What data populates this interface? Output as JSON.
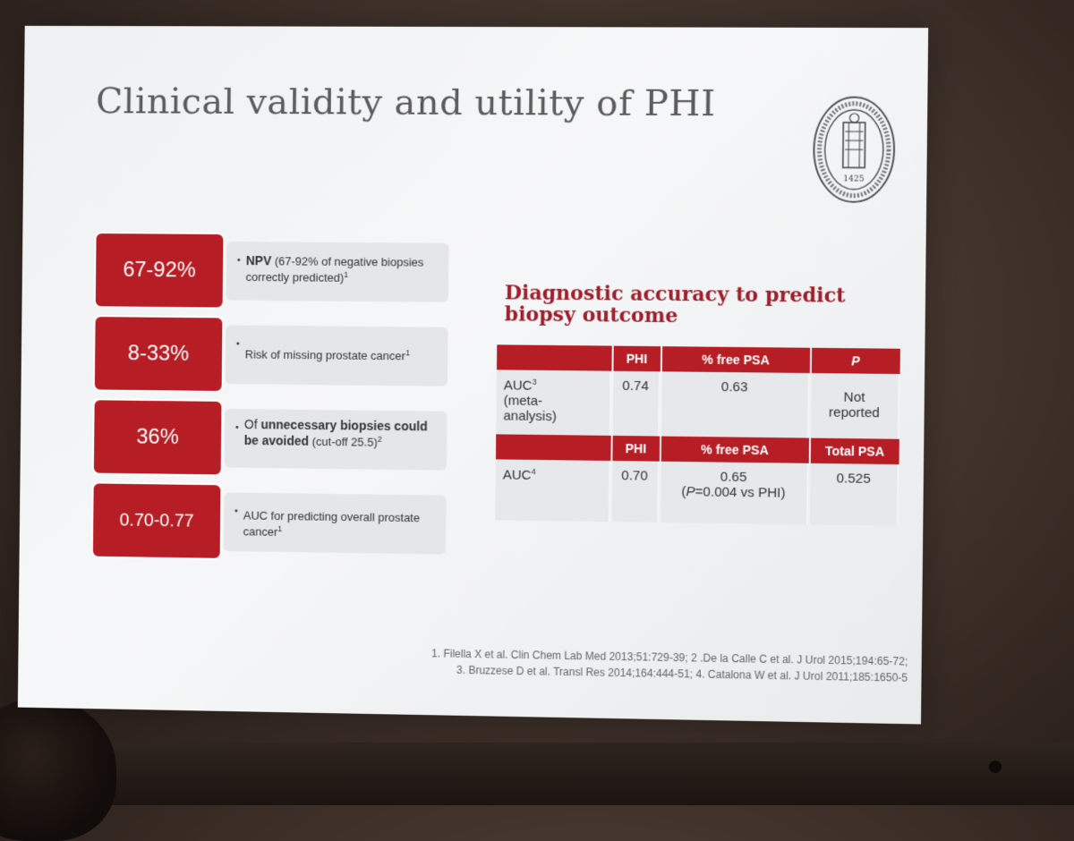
{
  "slide": {
    "title": "Clinical validity and utility of PHI",
    "seal_text": "1425"
  },
  "stats": [
    {
      "value": "67-92%",
      "bold": "NPV",
      "text": " (67-92% of negative biopsies correctly predicted)",
      "ref": "1"
    },
    {
      "value": "8-33%",
      "bold": "",
      "text": "Risk of missing prostate cancer",
      "ref": "1"
    },
    {
      "value": "36%",
      "bold_prefix": "Of ",
      "bold": "unnecessary biopsies could be avoided",
      "text": " (cut-off 25.5)",
      "ref": "2"
    },
    {
      "value": "0.70-0.77",
      "bold": "",
      "text": "AUC for predicting overall prostate cancer",
      "ref": "1"
    }
  ],
  "diagnostic": {
    "title": "Diagnostic accuracy to predict biopsy outcome",
    "table1": {
      "headers": [
        "",
        "PHI",
        "% free PSA",
        "P"
      ],
      "row_label": "AUC",
      "row_ref": "3",
      "row_label_suffix": "(meta-analysis)",
      "values": [
        "0.74",
        "0.63",
        "Not reported"
      ]
    },
    "table2": {
      "headers": [
        "",
        "PHI",
        "% free PSA",
        "Total PSA"
      ],
      "row_label": "AUC",
      "row_ref": "4",
      "values": [
        "0.70",
        "0.65",
        "0.525"
      ],
      "note_italic": "P",
      "note_rest": "=0.004 vs PHI)"
    }
  },
  "references": {
    "line1": "1. Filella X et al. Clin Chem Lab Med 2013;51:729-39; 2 .De la Calle C et al. J Urol 2015;194:65-72;",
    "line2": "3. Bruzzese D et al. Transl Res 2014;164:444-51; 4. Catalona W et al. J Urol 2011;185:1650-5"
  },
  "colors": {
    "accent": "#b61d24",
    "title_red": "#9e1e2b"
  }
}
